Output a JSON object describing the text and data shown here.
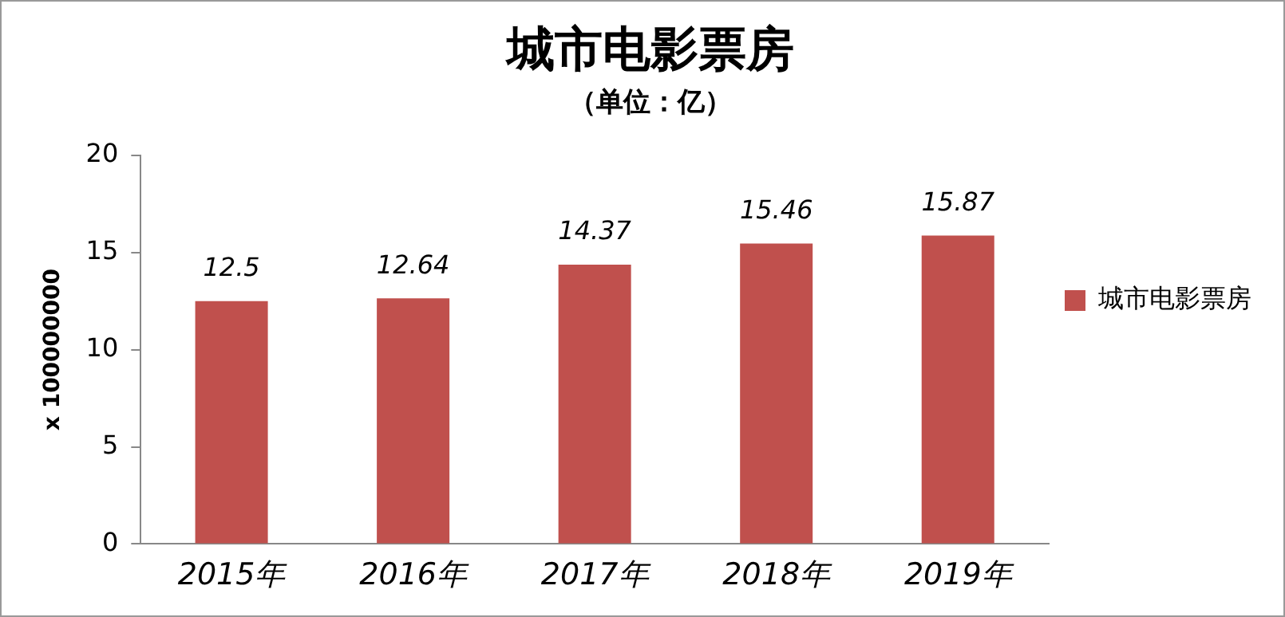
{
  "chart_data": {
    "type": "bar",
    "title": "城市电影票房",
    "subtitle": "（单位：亿）",
    "ylabel": "x 100000000",
    "categories": [
      "2015年",
      "2016年",
      "2017年",
      "2018年",
      "2019年"
    ],
    "series": [
      {
        "name": "城市电影票房",
        "color": "#c0504d",
        "values": [
          12.5,
          12.64,
          14.37,
          15.46,
          15.87
        ]
      }
    ],
    "ylim": [
      0,
      20
    ],
    "yticks": [
      0,
      5,
      10,
      15,
      20
    ],
    "grid": false,
    "legend": "right",
    "data_labels": true
  }
}
